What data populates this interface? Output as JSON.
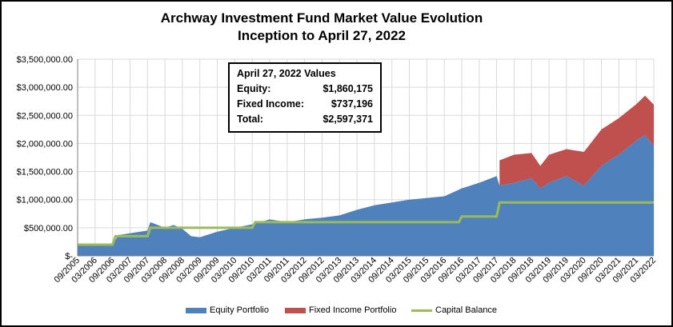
{
  "title_line1": "Archway Investment Fund Market Value Evolution",
  "title_line2": "Inception to April 27, 2022",
  "infobox": {
    "header": "April 27, 2022  Values",
    "rows": [
      {
        "label": "Equity:",
        "value": "$1,860,175"
      },
      {
        "label": "Fixed Income:",
        "value": "$737,196"
      },
      {
        "label": "Total:",
        "value": "$2,597,371"
      }
    ]
  },
  "legend": {
    "equity": "Equity Portfolio",
    "fixed": "Fixed Income Portfolio",
    "capital": "Capital Balance"
  },
  "colors": {
    "equity": "#4f81bd",
    "fixed": "#c0504d",
    "capital": "#9bbb59",
    "grid": "#d9d9d9"
  },
  "chart_data": {
    "type": "area",
    "title": "Archway Investment Fund Market Value Evolution Inception to April 27, 2022",
    "ylim": [
      0,
      3500000
    ],
    "yticks": [
      0,
      500000,
      1000000,
      1500000,
      2000000,
      2500000,
      3000000,
      3500000
    ],
    "ytick_labels": [
      "$-",
      "$500,000.00",
      "$1,000,000.00",
      "$1,500,000.00",
      "$2,000,000.00",
      "$2,500,000.00",
      "$3,000,000.00",
      "$3,500,000.00"
    ],
    "xlim": [
      "09/2005",
      "03/2022"
    ],
    "xticks": [
      "09/2005",
      "03/2006",
      "09/2006",
      "03/2007",
      "09/2007",
      "03/2008",
      "09/2008",
      "03/2009",
      "09/2009",
      "03/2010",
      "09/2010",
      "03/2011",
      "09/2011",
      "03/2012",
      "09/2012",
      "03/2013",
      "09/2013",
      "03/2014",
      "09/2014",
      "03/2015",
      "09/2015",
      "03/2016",
      "09/2016",
      "03/2017",
      "09/2017",
      "03/2018",
      "09/2018",
      "03/2019",
      "09/2019",
      "03/2020",
      "09/2020",
      "03/2021",
      "09/2021",
      "03/2022"
    ],
    "grid": true,
    "legend_position": "bottom",
    "series": [
      {
        "name": "Equity Portfolio",
        "x": [
          "09/2005",
          "09/2006",
          "11/2006",
          "09/2007",
          "10/2007",
          "03/2008",
          "06/2008",
          "09/2008",
          "12/2008",
          "03/2009",
          "09/2009",
          "03/2010",
          "09/2010",
          "03/2011",
          "09/2011",
          "03/2012",
          "09/2012",
          "03/2013",
          "09/2013",
          "03/2014",
          "09/2014",
          "03/2015",
          "09/2015",
          "03/2016",
          "09/2016",
          "03/2017",
          "09/2017",
          "10/2017",
          "03/2018",
          "09/2018",
          "12/2018",
          "03/2019",
          "09/2019",
          "03/2020",
          "09/2020",
          "03/2021",
          "09/2021",
          "12/2021",
          "03/2022"
        ],
        "values": [
          200000,
          200000,
          370000,
          450000,
          600000,
          500000,
          550000,
          480000,
          350000,
          330000,
          430000,
          500000,
          560000,
          650000,
          600000,
          650000,
          680000,
          720000,
          820000,
          900000,
          950000,
          1000000,
          1030000,
          1060000,
          1200000,
          1300000,
          1420000,
          1250000,
          1300000,
          1380000,
          1200000,
          1300000,
          1420000,
          1250000,
          1600000,
          1800000,
          2050000,
          2150000,
          1950000
        ]
      },
      {
        "name": "Fixed Income Portfolio",
        "x": [
          "10/2017",
          "03/2018",
          "09/2018",
          "12/2018",
          "03/2019",
          "09/2019",
          "03/2020",
          "09/2020",
          "03/2021",
          "09/2021",
          "12/2021",
          "03/2022"
        ],
        "values": [
          450000,
          500000,
          450000,
          400000,
          500000,
          480000,
          600000,
          650000,
          650000,
          650000,
          700000,
          740000
        ]
      },
      {
        "name": "Capital Balance",
        "x": [
          "09/2005",
          "09/2006",
          "10/2006",
          "09/2007",
          "10/2007",
          "09/2010",
          "10/2010",
          "08/2016",
          "09/2016",
          "09/2017",
          "10/2017",
          "03/2022"
        ],
        "values": [
          200000,
          200000,
          350000,
          350000,
          500000,
          500000,
          600000,
          600000,
          700000,
          700000,
          950000,
          950000
        ]
      }
    ]
  }
}
